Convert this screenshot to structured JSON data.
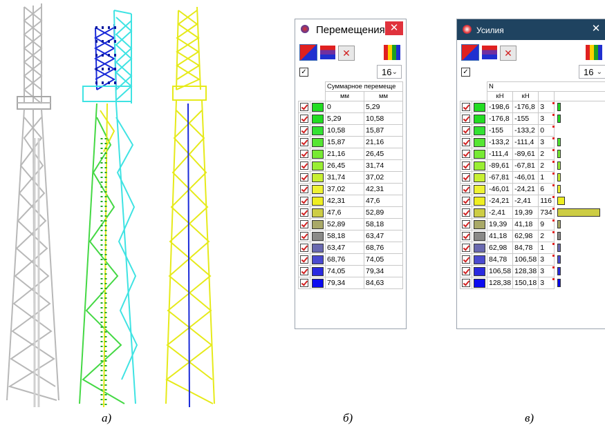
{
  "captions": {
    "a": "а)",
    "b": "б)",
    "c": "в)"
  },
  "colors": {
    "tower_gray": "#bfbfbf",
    "tower_yellow": "#e6ea1a",
    "tower_cyan": "#3fe3e3",
    "tower_blue": "#1a2ad8",
    "tower_green": "#44d844",
    "close_red": "#e0323c",
    "title_dark": "#1f4360"
  },
  "displacement": {
    "title": "Перемещения",
    "select_value": "16",
    "header_main": "Суммарное перемеще",
    "unit_from": "мм",
    "unit_to": "мм",
    "rows": [
      {
        "from": "0",
        "to": "5,29",
        "color": "#22dd22"
      },
      {
        "from": "5,29",
        "to": "10,58",
        "color": "#22dd22"
      },
      {
        "from": "10,58",
        "to": "15,87",
        "color": "#33e233"
      },
      {
        "from": "15,87",
        "to": "21,16",
        "color": "#55e633"
      },
      {
        "from": "21,16",
        "to": "26,45",
        "color": "#77ea33"
      },
      {
        "from": "26,45",
        "to": "31,74",
        "color": "#99ee33"
      },
      {
        "from": "31,74",
        "to": "37,02",
        "color": "#c8f033"
      },
      {
        "from": "37,02",
        "to": "42,31",
        "color": "#eef233"
      },
      {
        "from": "42,31",
        "to": "47,6",
        "color": "#eeee22"
      },
      {
        "from": "47,6",
        "to": "52,89",
        "color": "#cdcd44"
      },
      {
        "from": "52,89",
        "to": "58,18",
        "color": "#a9a968"
      },
      {
        "from": "58,18",
        "to": "63,47",
        "color": "#8a8a88"
      },
      {
        "from": "63,47",
        "to": "68,76",
        "color": "#6a6ab0"
      },
      {
        "from": "68,76",
        "to": "74,05",
        "color": "#4a4ad0"
      },
      {
        "from": "74,05",
        "to": "79,34",
        "color": "#2a2ae0"
      },
      {
        "from": "79,34",
        "to": "84,63",
        "color": "#0a0af0"
      }
    ]
  },
  "forces": {
    "title": "Усилия",
    "select_value": "16",
    "header_main": "N",
    "unit_from": "кН",
    "unit_to": "кН",
    "rows": [
      {
        "from": "-198,6",
        "to": "-176,8",
        "count": "3",
        "color": "#22dd22",
        "bar": 3,
        "bar_color": "#22dd22"
      },
      {
        "from": "-176,8",
        "to": "-155",
        "count": "3",
        "color": "#22dd22",
        "bar": 3,
        "bar_color": "#22dd22"
      },
      {
        "from": "-155",
        "to": "-133,2",
        "count": "0",
        "color": "#33e233",
        "bar": 0,
        "bar_color": "#33e233"
      },
      {
        "from": "-133,2",
        "to": "-111,4",
        "count": "3",
        "color": "#55e633",
        "bar": 3,
        "bar_color": "#55e633"
      },
      {
        "from": "-111,4",
        "to": "-89,61",
        "count": "2",
        "color": "#77ea33",
        "bar": 2,
        "bar_color": "#77ea33"
      },
      {
        "from": "-89,61",
        "to": "-67,81",
        "count": "2",
        "color": "#99ee33",
        "bar": 2,
        "bar_color": "#99ee33"
      },
      {
        "from": "-67,81",
        "to": "-46,01",
        "count": "1",
        "color": "#c8f033",
        "bar": 1,
        "bar_color": "#c8f033"
      },
      {
        "from": "-46,01",
        "to": "-24,21",
        "count": "6",
        "color": "#eef233",
        "bar": 6,
        "bar_color": "#eef233"
      },
      {
        "from": "-24,21",
        "to": "-2,41",
        "count": "116",
        "color": "#eeee22",
        "bar": 116,
        "bar_color": "#eeee22"
      },
      {
        "from": "-2,41",
        "to": "19,39",
        "count": "734",
        "color": "#cdcd44",
        "bar": 734,
        "bar_color": "#cdcd44"
      },
      {
        "from": "19,39",
        "to": "41,18",
        "count": "9",
        "color": "#a9a968",
        "bar": 9,
        "bar_color": "#a9a968"
      },
      {
        "from": "41,18",
        "to": "62,98",
        "count": "2",
        "color": "#8a8a88",
        "bar": 2,
        "bar_color": "#8a8a88"
      },
      {
        "from": "62,98",
        "to": "84,78",
        "count": "1",
        "color": "#6a6ab0",
        "bar": 1,
        "bar_color": "#6a6ab0"
      },
      {
        "from": "84,78",
        "to": "106,58",
        "count": "3",
        "color": "#4a4ad0",
        "bar": 3,
        "bar_color": "#4a4ad0"
      },
      {
        "from": "106,58",
        "to": "128,38",
        "count": "3",
        "color": "#2a2ae0",
        "bar": 3,
        "bar_color": "#2a2ae0"
      },
      {
        "from": "128,38",
        "to": "150,18",
        "count": "3",
        "color": "#0a0af0",
        "bar": 3,
        "bar_color": "#0a0af0"
      }
    ]
  }
}
